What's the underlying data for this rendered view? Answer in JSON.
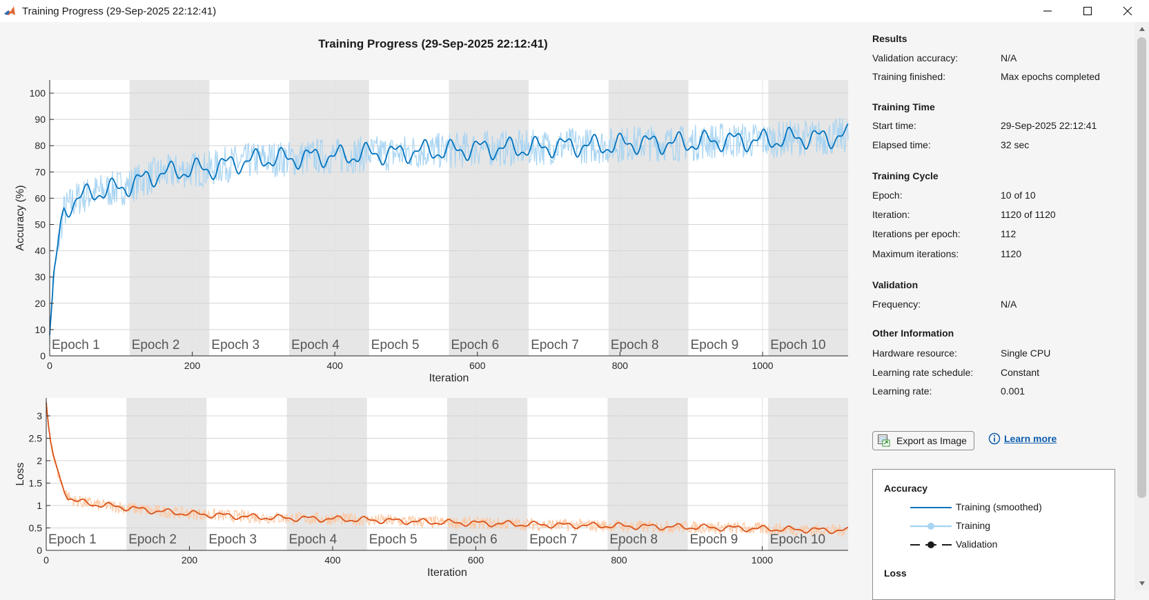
{
  "window": {
    "title": "Training Progress (29-Sep-2025 22:12:41)"
  },
  "plot_title": "Training Progress (29-Sep-2025 22:12:41)",
  "chart_data": [
    {
      "type": "line",
      "ylabel": "Accuracy (%)",
      "xlabel": "Iteration",
      "xlim": [
        0,
        1120
      ],
      "ylim": [
        0,
        105
      ],
      "yticks": [
        0,
        10,
        20,
        30,
        40,
        50,
        60,
        70,
        80,
        90,
        100
      ],
      "xticks": [
        0,
        200,
        400,
        600,
        800,
        1000
      ],
      "epoch_labels": [
        "Epoch 1",
        "Epoch 2",
        "Epoch 3",
        "Epoch 4",
        "Epoch 5",
        "Epoch 6",
        "Epoch 7",
        "Epoch 8",
        "Epoch 9",
        "Epoch 10"
      ],
      "iterations_per_epoch": 112,
      "grid": true,
      "series": [
        {
          "name": "Training (smoothed)",
          "color": "#0072bd",
          "x": [
            0,
            3,
            6,
            10,
            15,
            20,
            30,
            40,
            60,
            80,
            100,
            112,
            130,
            150,
            175,
            200,
            224,
            250,
            275,
            300,
            336,
            375,
            410,
            448,
            480,
            520,
            560,
            600,
            640,
            672,
            720,
            760,
            784,
            820,
            860,
            896,
            940,
            980,
            1008,
            1050,
            1090,
            1120
          ],
          "y": [
            8,
            20,
            30,
            38,
            48,
            55,
            58,
            60,
            62,
            63,
            64,
            65,
            67,
            69,
            70,
            71,
            71,
            73,
            74,
            75,
            75,
            76,
            76,
            77,
            77,
            78,
            78,
            79,
            79,
            79,
            80,
            80,
            80,
            81,
            81,
            81,
            82,
            82,
            82,
            83,
            83,
            84
          ]
        },
        {
          "name": "Training",
          "color": "#a8d4f2",
          "x": [
            0,
            3,
            6,
            10,
            15,
            20,
            30,
            40,
            60,
            80,
            100,
            112,
            130,
            150,
            175,
            200,
            224,
            250,
            275,
            300,
            336,
            375,
            410,
            448,
            480,
            520,
            560,
            600,
            640,
            672,
            720,
            760,
            784,
            820,
            860,
            896,
            940,
            980,
            1008,
            1050,
            1090,
            1120
          ],
          "y": [
            8,
            20,
            30,
            38,
            48,
            55,
            58,
            60,
            62,
            63,
            64,
            65,
            67,
            69,
            70,
            71,
            71,
            73,
            74,
            75,
            75,
            76,
            76,
            77,
            77,
            78,
            78,
            79,
            79,
            79,
            80,
            80,
            80,
            81,
            81,
            81,
            82,
            82,
            82,
            83,
            83,
            84
          ]
        }
      ]
    },
    {
      "type": "line",
      "ylabel": "Loss",
      "xlabel": "Iteration",
      "xlim": [
        0,
        1120
      ],
      "ylim": [
        0,
        3.4
      ],
      "yticks": [
        0,
        0.5,
        1,
        1.5,
        2,
        2.5,
        3
      ],
      "ytick_labels": [
        "0",
        "0.5",
        "1",
        "1.5",
        "2",
        "2.5",
        "3"
      ],
      "xticks": [
        0,
        200,
        400,
        600,
        800,
        1000
      ],
      "epoch_labels": [
        "Epoch 1",
        "Epoch 2",
        "Epoch 3",
        "Epoch 4",
        "Epoch 5",
        "Epoch 6",
        "Epoch 7",
        "Epoch 8",
        "Epoch 9",
        "Epoch 10"
      ],
      "iterations_per_epoch": 112,
      "grid": true,
      "series": [
        {
          "name": "Training (smoothed)",
          "color": "#d95319",
          "x": [
            0,
            3,
            6,
            10,
            15,
            20,
            30,
            40,
            60,
            80,
            100,
            112,
            150,
            200,
            224,
            280,
            336,
            400,
            448,
            500,
            560,
            620,
            672,
            730,
            784,
            840,
            896,
            950,
            1008,
            1060,
            1120
          ],
          "y": [
            3.3,
            2.8,
            2.4,
            2.1,
            1.8,
            1.55,
            1.2,
            1.1,
            1.05,
            1.0,
            0.98,
            0.95,
            0.88,
            0.82,
            0.8,
            0.75,
            0.72,
            0.7,
            0.68,
            0.65,
            0.62,
            0.6,
            0.58,
            0.56,
            0.55,
            0.53,
            0.52,
            0.5,
            0.48,
            0.46,
            0.44
          ]
        },
        {
          "name": "Training",
          "color": "#fdc8a2",
          "x": [
            0,
            3,
            6,
            10,
            15,
            20,
            30,
            40,
            60,
            80,
            100,
            112,
            150,
            200,
            224,
            280,
            336,
            400,
            448,
            500,
            560,
            620,
            672,
            730,
            784,
            840,
            896,
            950,
            1008,
            1060,
            1120
          ],
          "y": [
            3.3,
            2.8,
            2.4,
            2.1,
            1.8,
            1.55,
            1.2,
            1.1,
            1.05,
            1.0,
            0.98,
            0.95,
            0.88,
            0.82,
            0.8,
            0.75,
            0.72,
            0.7,
            0.68,
            0.65,
            0.62,
            0.6,
            0.58,
            0.56,
            0.55,
            0.53,
            0.52,
            0.5,
            0.48,
            0.46,
            0.44
          ]
        }
      ]
    }
  ],
  "panel": {
    "results": {
      "title": "Results",
      "rows": [
        {
          "key": "Validation accuracy:",
          "value": "N/A"
        },
        {
          "key": "Training finished:",
          "value": "Max epochs completed"
        }
      ]
    },
    "training_time": {
      "title": "Training Time",
      "rows": [
        {
          "key": "Start time:",
          "value": "29-Sep-2025 22:12:41"
        },
        {
          "key": "Elapsed time:",
          "value": "32 sec"
        }
      ]
    },
    "training_cycle": {
      "title": "Training Cycle",
      "rows": [
        {
          "key": "Epoch:",
          "value": "10 of 10"
        },
        {
          "key": "Iteration:",
          "value": "1120 of 1120"
        },
        {
          "key": "Iterations per epoch:",
          "value": "112"
        },
        {
          "key": "Maximum iterations:",
          "value": "1120"
        }
      ]
    },
    "validation": {
      "title": "Validation",
      "rows": [
        {
          "key": "Frequency:",
          "value": "N/A"
        }
      ]
    },
    "other_information": {
      "title": "Other Information",
      "rows": [
        {
          "key": "Hardware resource:",
          "value": "Single CPU"
        },
        {
          "key": "Learning rate schedule:",
          "value": "Constant"
        },
        {
          "key": "Learning rate:",
          "value": "0.001"
        }
      ]
    },
    "export_button": "Export as Image",
    "learn_more": "Learn more",
    "legend": {
      "accuracy_title": "Accuracy",
      "accuracy_entries": [
        "Training (smoothed)",
        "Training",
        "Validation"
      ],
      "loss_title": "Loss"
    }
  },
  "colors": {
    "accuracy_smoothed": "#0072bd",
    "accuracy_raw": "#a8d4f2",
    "loss_smoothed": "#d95319",
    "loss_raw": "#fdc8a2",
    "epoch_shade": "#e6e6e6"
  }
}
